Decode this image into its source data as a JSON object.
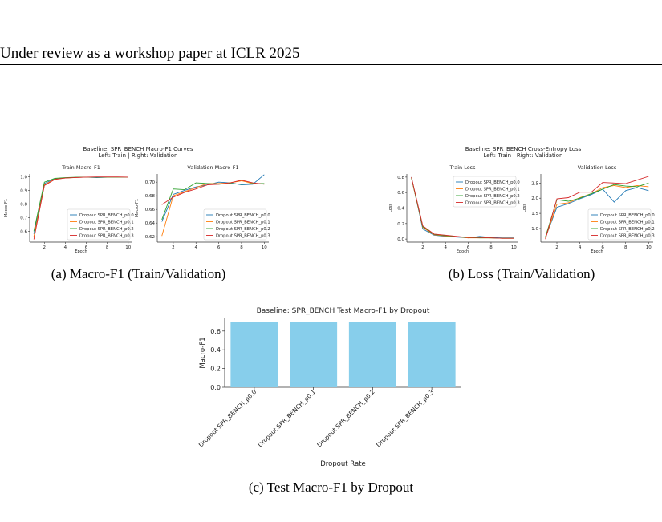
{
  "page": {
    "header": "Under review as a workshop paper at ICLR 2025",
    "captions": {
      "a": "(a) Macro-F1 (Train/Validation)",
      "b": "(b) Loss (Train/Validation)",
      "c": "(c) Test Macro-F1 by Dropout"
    },
    "fig_a": {
      "suptitle1": "Baseline: SPR_BENCH Macro-F1 Curves",
      "suptitle2": "Left: Train  |  Right: Validation"
    },
    "fig_b": {
      "suptitle1": "Baseline: SPR_BENCH Cross-Entropy Loss",
      "suptitle2": "Left: Train  |  Right: Validation"
    }
  },
  "colors": {
    "series": [
      "#1f77b4",
      "#ff7f0e",
      "#2ca02c",
      "#d62728"
    ],
    "bar": "#87ceeb"
  },
  "chart_data": [
    {
      "id": "train_f1",
      "type": "line",
      "title": "Train Macro-F1",
      "xlabel": "Epoch",
      "ylabel": "Macro-F1",
      "x": [
        1,
        2,
        3,
        4,
        5,
        6,
        7,
        8,
        9,
        10
      ],
      "xlim": [
        0.6,
        10.4
      ],
      "ylim": [
        0.52,
        1.02
      ],
      "xticks": [
        2,
        4,
        6,
        8,
        10
      ],
      "yticks": [
        0.6,
        0.7,
        0.8,
        0.9,
        1.0
      ],
      "ytick_labels": [
        "0.6",
        "0.7",
        "0.8",
        "0.9",
        "1.0"
      ],
      "legend": "lower-right",
      "series": [
        {
          "name": "Dropout SPR_BENCH_p0.0",
          "values": [
            0.58,
            0.95,
            0.985,
            0.992,
            0.995,
            0.997,
            0.993,
            0.996,
            0.997,
            0.997
          ]
        },
        {
          "name": "Dropout SPR_BENCH_p0.1",
          "values": [
            0.56,
            0.94,
            0.982,
            0.99,
            0.995,
            0.997,
            0.997,
            0.997,
            0.997,
            0.997
          ]
        },
        {
          "name": "Dropout SPR_BENCH_p0.2",
          "values": [
            0.6,
            0.96,
            0.988,
            0.993,
            0.996,
            0.997,
            0.997,
            0.997,
            0.997,
            0.997
          ]
        },
        {
          "name": "Dropout SPR_BENCH_p0.3",
          "values": [
            0.54,
            0.935,
            0.98,
            0.99,
            0.994,
            0.997,
            0.998,
            0.998,
            0.998,
            0.997
          ]
        }
      ]
    },
    {
      "id": "val_f1",
      "type": "line",
      "title": "Validation Macro-F1",
      "xlabel": "",
      "ylabel": "Macro-F1",
      "x": [
        1,
        2,
        3,
        4,
        5,
        6,
        7,
        8,
        9,
        10
      ],
      "xlim": [
        0.6,
        10.4
      ],
      "ylim": [
        0.612,
        0.712
      ],
      "xticks": [
        2,
        4,
        6,
        8,
        10
      ],
      "yticks": [
        0.62,
        0.64,
        0.66,
        0.68,
        0.7
      ],
      "ytick_labels": [
        "0.62",
        "0.64",
        "0.66",
        "0.68",
        "0.70"
      ],
      "legend": "lower-right",
      "series": [
        {
          "name": "Dropout SPR_BENCH_p0.0",
          "values": [
            0.642,
            0.682,
            0.688,
            0.693,
            0.696,
            0.7,
            0.699,
            0.696,
            0.697,
            0.711
          ]
        },
        {
          "name": "Dropout SPR_BENCH_p0.1",
          "values": [
            0.621,
            0.68,
            0.686,
            0.692,
            0.698,
            0.698,
            0.699,
            0.702,
            0.698,
            0.698
          ]
        },
        {
          "name": "Dropout SPR_BENCH_p0.2",
          "values": [
            0.645,
            0.69,
            0.689,
            0.699,
            0.698,
            0.697,
            0.698,
            0.697,
            0.698,
            0.698
          ]
        },
        {
          "name": "Dropout SPR_BENCH_p0.3",
          "values": [
            0.667,
            0.678,
            0.685,
            0.69,
            0.696,
            0.697,
            0.699,
            0.703,
            0.699,
            0.697
          ]
        }
      ]
    },
    {
      "id": "train_loss",
      "type": "line",
      "title": "Train Loss",
      "xlabel": "Epoch",
      "ylabel": "Loss",
      "x": [
        1,
        2,
        3,
        4,
        5,
        6,
        7,
        8,
        9,
        10
      ],
      "xlim": [
        0.6,
        10.4
      ],
      "ylim": [
        -0.04,
        0.84
      ],
      "xticks": [
        2,
        4,
        6,
        8,
        10
      ],
      "yticks": [
        0,
        0.2,
        0.4,
        0.6,
        0.8
      ],
      "ytick_labels": [
        "0.0",
        "0.2",
        "0.4",
        "0.6",
        "0.8"
      ],
      "legend": "upper-right",
      "series": [
        {
          "name": "Dropout SPR_BENCH_p0.0",
          "values": [
            0.8,
            0.13,
            0.05,
            0.035,
            0.025,
            0.015,
            0.035,
            0.02,
            0.015,
            0.015
          ]
        },
        {
          "name": "Dropout SPR_BENCH_p0.1",
          "values": [
            0.79,
            0.15,
            0.055,
            0.04,
            0.03,
            0.015,
            0.015,
            0.015,
            0.01,
            0.01
          ]
        },
        {
          "name": "Dropout SPR_BENCH_p0.2",
          "values": [
            0.79,
            0.16,
            0.06,
            0.045,
            0.03,
            0.02,
            0.015,
            0.015,
            0.01,
            0.01
          ]
        },
        {
          "name": "Dropout SPR_BENCH_p0.3",
          "values": [
            0.8,
            0.17,
            0.065,
            0.05,
            0.035,
            0.02,
            0.02,
            0.015,
            0.01,
            0.01
          ]
        }
      ]
    },
    {
      "id": "val_loss",
      "type": "line",
      "title": "Validation Loss",
      "xlabel": "Epoch",
      "ylabel": "Loss",
      "x": [
        1,
        2,
        3,
        4,
        5,
        6,
        7,
        8,
        9,
        10
      ],
      "xlim": [
        0.6,
        10.4
      ],
      "ylim": [
        0.55,
        2.8
      ],
      "xticks": [
        2,
        4,
        6,
        8,
        10
      ],
      "yticks": [
        1.0,
        1.5,
        2.0,
        2.5
      ],
      "ytick_labels": [
        "1.0",
        "1.5",
        "2.0",
        "2.5"
      ],
      "legend": "lower-right",
      "series": [
        {
          "name": "Dropout SPR_BENCH_p0.0",
          "values": [
            0.7,
            1.7,
            1.82,
            1.98,
            2.12,
            2.3,
            1.87,
            2.25,
            2.35,
            2.25
          ]
        },
        {
          "name": "Dropout SPR_BENCH_p0.1",
          "values": [
            0.68,
            1.8,
            1.85,
            2.02,
            2.15,
            2.35,
            2.42,
            2.35,
            2.42,
            2.38
          ]
        },
        {
          "name": "Dropout SPR_BENCH_p0.2",
          "values": [
            0.72,
            1.95,
            1.9,
            2.0,
            2.15,
            2.3,
            2.45,
            2.4,
            2.38,
            2.5
          ]
        },
        {
          "name": "Dropout SPR_BENCH_p0.3",
          "values": [
            0.65,
            1.98,
            2.02,
            2.2,
            2.2,
            2.52,
            2.5,
            2.48,
            2.6,
            2.72
          ]
        }
      ]
    },
    {
      "id": "test_f1",
      "type": "bar",
      "title": "Baseline: SPR_BENCH Test Macro-F1 by Dropout",
      "xlabel": "Dropout Rate",
      "ylabel": "Macro-F1",
      "categories": [
        "Dropout SPR_BENCH_p0.0",
        "Dropout SPR_BENCH_p0.1",
        "Dropout SPR_BENCH_p0.2",
        "Dropout SPR_BENCH_p0.3"
      ],
      "values": [
        0.696,
        0.699,
        0.698,
        0.699
      ],
      "ylim": [
        0,
        0.735
      ],
      "yticks": [
        0,
        0.2,
        0.4,
        0.6
      ],
      "ytick_labels": [
        "0.0",
        "0.2",
        "0.4",
        "0.6"
      ]
    }
  ]
}
